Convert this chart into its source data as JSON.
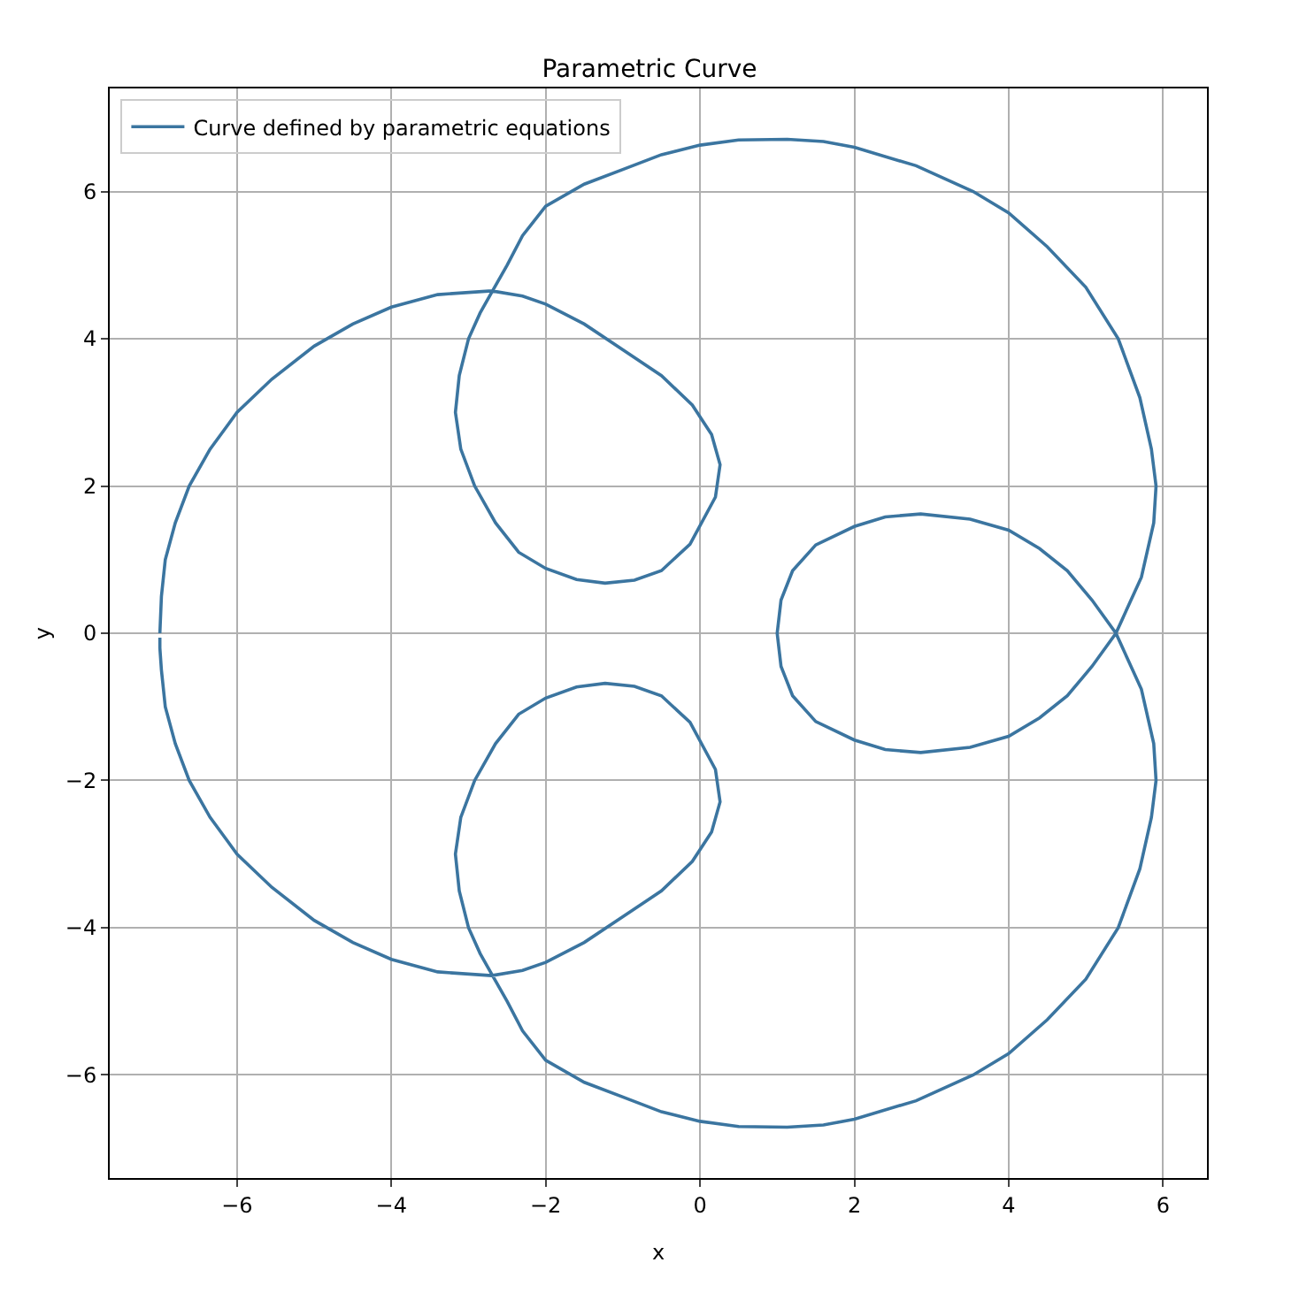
{
  "chart_data": {
    "type": "line",
    "title": "Parametric Curve",
    "xlabel": "x",
    "ylabel": "y",
    "xlim": [
      -7.65,
      6.57
    ],
    "ylim": [
      -7.4,
      7.4
    ],
    "xticks": [
      {
        "value": -6,
        "label": "−6"
      },
      {
        "value": -4,
        "label": "−4"
      },
      {
        "value": -2,
        "label": "−2"
      },
      0,
      2,
      4,
      6
    ],
    "yticks": [
      {
        "value": -6,
        "label": "−6"
      },
      {
        "value": -4,
        "label": "−4"
      },
      {
        "value": -2,
        "label": "−2"
      },
      0,
      2,
      4,
      6
    ],
    "grid": true,
    "legend": "top left",
    "marker": "none",
    "line_style": "solid",
    "series": [
      {
        "name": "Curve defined by parametric equations",
        "color": "#3b75a0",
        "x": [
          -7,
          -6.98,
          -6.93,
          -6.8,
          -6.62,
          -6.35,
          -6,
          -5.55,
          -5,
          -4.5,
          -4,
          -3.4,
          -2.7,
          -2.3,
          -2,
          -1.5,
          -1,
          -0.5,
          -0.1,
          0.15,
          0.26,
          0.2,
          -0.13,
          -0.5,
          -0.85,
          -1.23,
          -1.6,
          -2,
          -2.35,
          -2.65,
          -2.92,
          -3.1,
          -3.17,
          -3.12,
          -3,
          -2.85,
          -2.7,
          -2.5,
          -2.3,
          -2,
          -1.5,
          -1,
          -0.5,
          0,
          0.5,
          1.13,
          1.6,
          2,
          2.8,
          3.54,
          4,
          4.5,
          5,
          5.42,
          5.7,
          5.85,
          5.91,
          5.88,
          5.72,
          5.39,
          5.08,
          4.76,
          4.4,
          4,
          3.5,
          2.86,
          2.4,
          2,
          1.5,
          1.2,
          1.05,
          1,
          1.05,
          1.2,
          1.5,
          2,
          2.4,
          2.86,
          3.5,
          4,
          4.4,
          4.76,
          5.08,
          5.39,
          5.72,
          5.88,
          5.91,
          5.85,
          5.7,
          5.42,
          5,
          4.5,
          4,
          3.54,
          2.8,
          2,
          1.6,
          1.13,
          0.5,
          0,
          -0.5,
          -1,
          -1.5,
          -2,
          -2.3,
          -2.5,
          -2.7,
          -2.85,
          -3,
          -3.12,
          -3.17,
          -3.1,
          -2.92,
          -2.65,
          -2.35,
          -2,
          -1.6,
          -1.23,
          -0.85,
          -0.5,
          -0.13,
          0.2,
          0.26,
          0.15,
          -0.1,
          -0.5,
          -1,
          -1.5,
          -2,
          -2.3,
          -2.7,
          -3.4,
          -4,
          -4.5,
          -5,
          -5.55,
          -6,
          -6.35,
          -6.62,
          -6.8,
          -6.93,
          -6.98,
          -7,
          -7
        ],
        "values": [
          0,
          0.5,
          1,
          1.5,
          2,
          2.5,
          3,
          3.45,
          3.9,
          4.2,
          4.43,
          4.6,
          4.65,
          4.58,
          4.47,
          4.2,
          3.85,
          3.5,
          3.1,
          2.7,
          2.29,
          1.85,
          1.21,
          0.85,
          0.72,
          0.68,
          0.73,
          0.88,
          1.1,
          1.5,
          2,
          2.5,
          3,
          3.5,
          4,
          4.35,
          4.63,
          5,
          5.4,
          5.8,
          6.1,
          6.3,
          6.5,
          6.63,
          6.7,
          6.71,
          6.68,
          6.6,
          6.35,
          6,
          5.71,
          5.25,
          4.7,
          4,
          3.2,
          2.5,
          2,
          1.5,
          0.76,
          0,
          -0.45,
          -0.85,
          -1.15,
          -1.4,
          -1.55,
          -1.62,
          -1.58,
          -1.45,
          -1.2,
          -0.85,
          -0.45,
          0,
          0.45,
          0.85,
          1.2,
          1.45,
          1.58,
          1.62,
          1.55,
          1.4,
          1.15,
          0.85,
          0.45,
          0,
          -0.76,
          -1.5,
          -2,
          -2.5,
          -3.2,
          -4,
          -4.7,
          -5.25,
          -5.71,
          -6,
          -6.35,
          -6.6,
          -6.68,
          -6.71,
          -6.7,
          -6.63,
          -6.5,
          -6.3,
          -6.1,
          -5.8,
          -5.4,
          -5,
          -4.63,
          -4.35,
          -4,
          -3.5,
          -3,
          -2.5,
          -2,
          -1.5,
          -1.1,
          -0.88,
          -0.73,
          -0.68,
          -0.72,
          -0.85,
          -1.21,
          -1.85,
          -2.29,
          -2.7,
          -3.1,
          -3.5,
          -3.85,
          -4.2,
          -4.47,
          -4.58,
          -4.65,
          -4.6,
          -4.43,
          -4.2,
          -3.9,
          -3.45,
          -3,
          -2.5,
          -2,
          -1.5,
          -1,
          -0.5,
          -0.2,
          -0.06
        ]
      }
    ]
  }
}
